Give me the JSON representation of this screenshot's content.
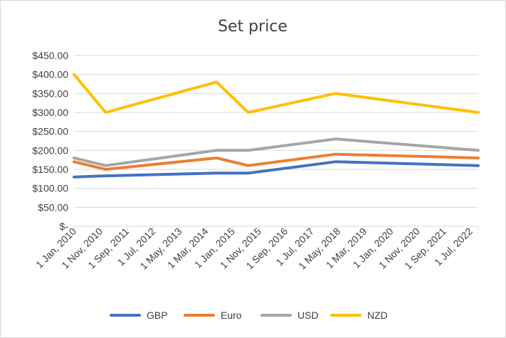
{
  "chart_data": {
    "type": "line",
    "title": "Set price",
    "xlabel": "",
    "ylabel": "",
    "x": [
      "2010-01-01",
      "2011-01-01",
      "2014-07-01",
      "2015-07-01",
      "2018-04-01",
      "2022-10-01"
    ],
    "x_tick_labels": [
      "1 Jan, 2010",
      "1 Nov, 2010",
      "1 Sep, 2011",
      "1 Jul, 2012",
      "1 May, 2013",
      "1 Mar, 2014",
      "1 Jan, 2015",
      "1 Nov, 2015",
      "1 Sep, 2016",
      "1 Jul, 2017",
      "1 May, 2018",
      "1 Mar, 2019",
      "1 Jan, 2020",
      "1 Nov, 2020",
      "1 Sep, 2021",
      "1 Jul, 2022"
    ],
    "x_tick_dates": [
      "2010-01-01",
      "2010-11-01",
      "2011-09-01",
      "2012-07-01",
      "2013-05-01",
      "2014-03-01",
      "2015-01-01",
      "2015-11-01",
      "2016-09-01",
      "2017-07-01",
      "2018-05-01",
      "2019-03-01",
      "2020-01-01",
      "2020-11-01",
      "2021-09-01",
      "2022-07-01"
    ],
    "x_range": [
      "2010-01-01",
      "2022-10-01"
    ],
    "y_tick_labels": [
      "$-",
      "$50.00",
      "$100.00",
      "$150.00",
      "$200.00",
      "$250.00",
      "$300.00",
      "$350.00",
      "$400.00",
      "$450.00"
    ],
    "y_ticks": [
      0,
      50,
      100,
      150,
      200,
      250,
      300,
      350,
      400,
      450
    ],
    "ylim": [
      0,
      450
    ],
    "grid": true,
    "legend_position": "bottom",
    "series": [
      {
        "name": "GBP",
        "color": "#4472C4",
        "values": [
          130,
          133,
          140,
          140,
          170,
          160
        ]
      },
      {
        "name": "Euro",
        "color": "#ED7D31",
        "values": [
          170,
          150,
          180,
          160,
          190,
          180
        ]
      },
      {
        "name": "USD",
        "color": "#A5A5A5",
        "values": [
          180,
          160,
          200,
          200,
          230,
          200
        ]
      },
      {
        "name": "NZD",
        "color": "#FFC000",
        "values": [
          400,
          300,
          380,
          300,
          350,
          300
        ]
      }
    ]
  }
}
